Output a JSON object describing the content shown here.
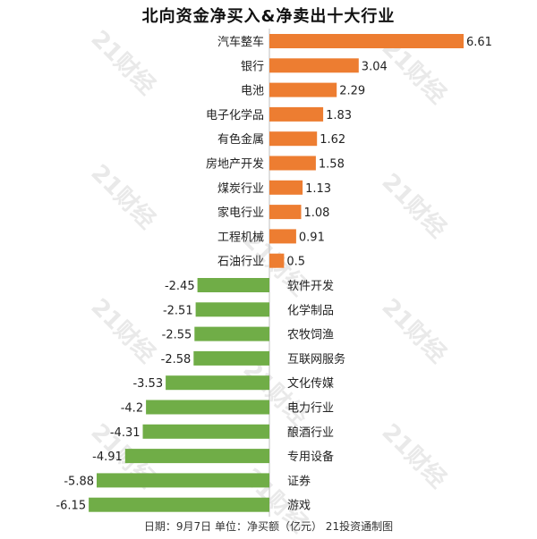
{
  "title": "北向资金净买入&净卖出十大行业",
  "footer": "日期：9月7日 单位：净买额（亿元） 21投资通制图",
  "watermark": "21财经",
  "colors": {
    "positive": "#ed7d31",
    "negative": "#70ad47"
  },
  "chart_data": {
    "type": "bar",
    "orientation": "horizontal",
    "title": "北向资金净买入&净卖出十大行业",
    "categories": [
      "汽车整车",
      "银行",
      "电池",
      "电子化学品",
      "有色金属",
      "房地产开发",
      "煤炭行业",
      "家电行业",
      "工程机械",
      "石油行业",
      "软件开发",
      "化学制品",
      "农牧饲渔",
      "互联网服务",
      "文化传媒",
      "电力行业",
      "酿酒行业",
      "专用设备",
      "证券",
      "游戏"
    ],
    "values": [
      6.61,
      3.04,
      2.29,
      1.83,
      1.62,
      1.58,
      1.13,
      1.08,
      0.91,
      0.5,
      -2.45,
      -2.51,
      -2.55,
      -2.58,
      -3.53,
      -4.2,
      -4.31,
      -4.91,
      -5.88,
      -6.15
    ],
    "value_labels": [
      "6.61",
      "3.04",
      "2.29",
      "1.83",
      "1.62",
      "1.58",
      "1.13",
      "1.08",
      "0.91",
      "0.5",
      "-2.45",
      "-2.51",
      "-2.55",
      "-2.58",
      "-3.53",
      "-4.2",
      "-4.31",
      "-4.91",
      "-5.88",
      "-6.15"
    ],
    "xlim": [
      -6.15,
      6.61
    ],
    "grid": false,
    "legend": "none"
  }
}
